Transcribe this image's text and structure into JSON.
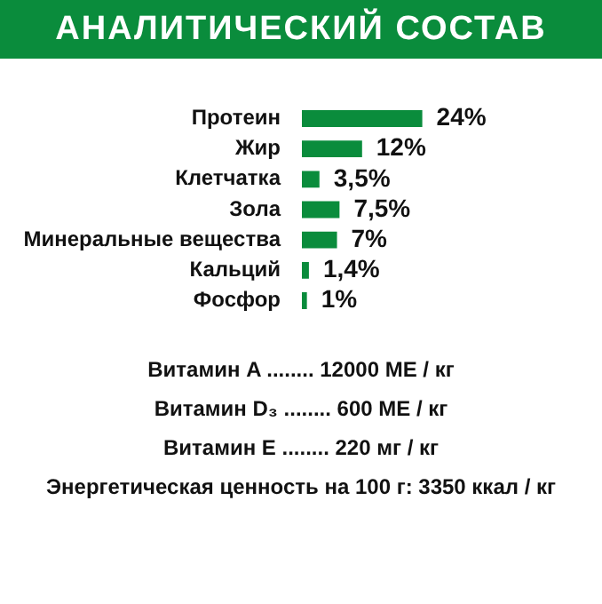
{
  "chart_data": {
    "type": "bar",
    "orientation": "horizontal",
    "title": "АНАЛИТИЧЕСКИЙ СОСТАВ",
    "categories": [
      "Протеин",
      "Жир",
      "Клетчатка",
      "Зола",
      "Минеральные вещества",
      "Кальций",
      "Фосфор"
    ],
    "values": [
      24,
      12,
      3.5,
      7.5,
      7,
      1.4,
      1
    ],
    "value_labels": [
      "24%",
      "12%",
      "3,5%",
      "7,5%",
      "7%",
      "1,4%",
      "1%"
    ],
    "color": "#0a8c3c",
    "tick_labels": "y",
    "grid": false,
    "legend": false,
    "annotations": [
      "Витамин A ........ 12000 МЕ / кг",
      "Витамин D₃ ........ 600 МЕ / кг",
      "Витамин E ........ 220 мг / кг",
      "Энергетическая ценность на 100 г:  3350 ккал / кг"
    ]
  }
}
